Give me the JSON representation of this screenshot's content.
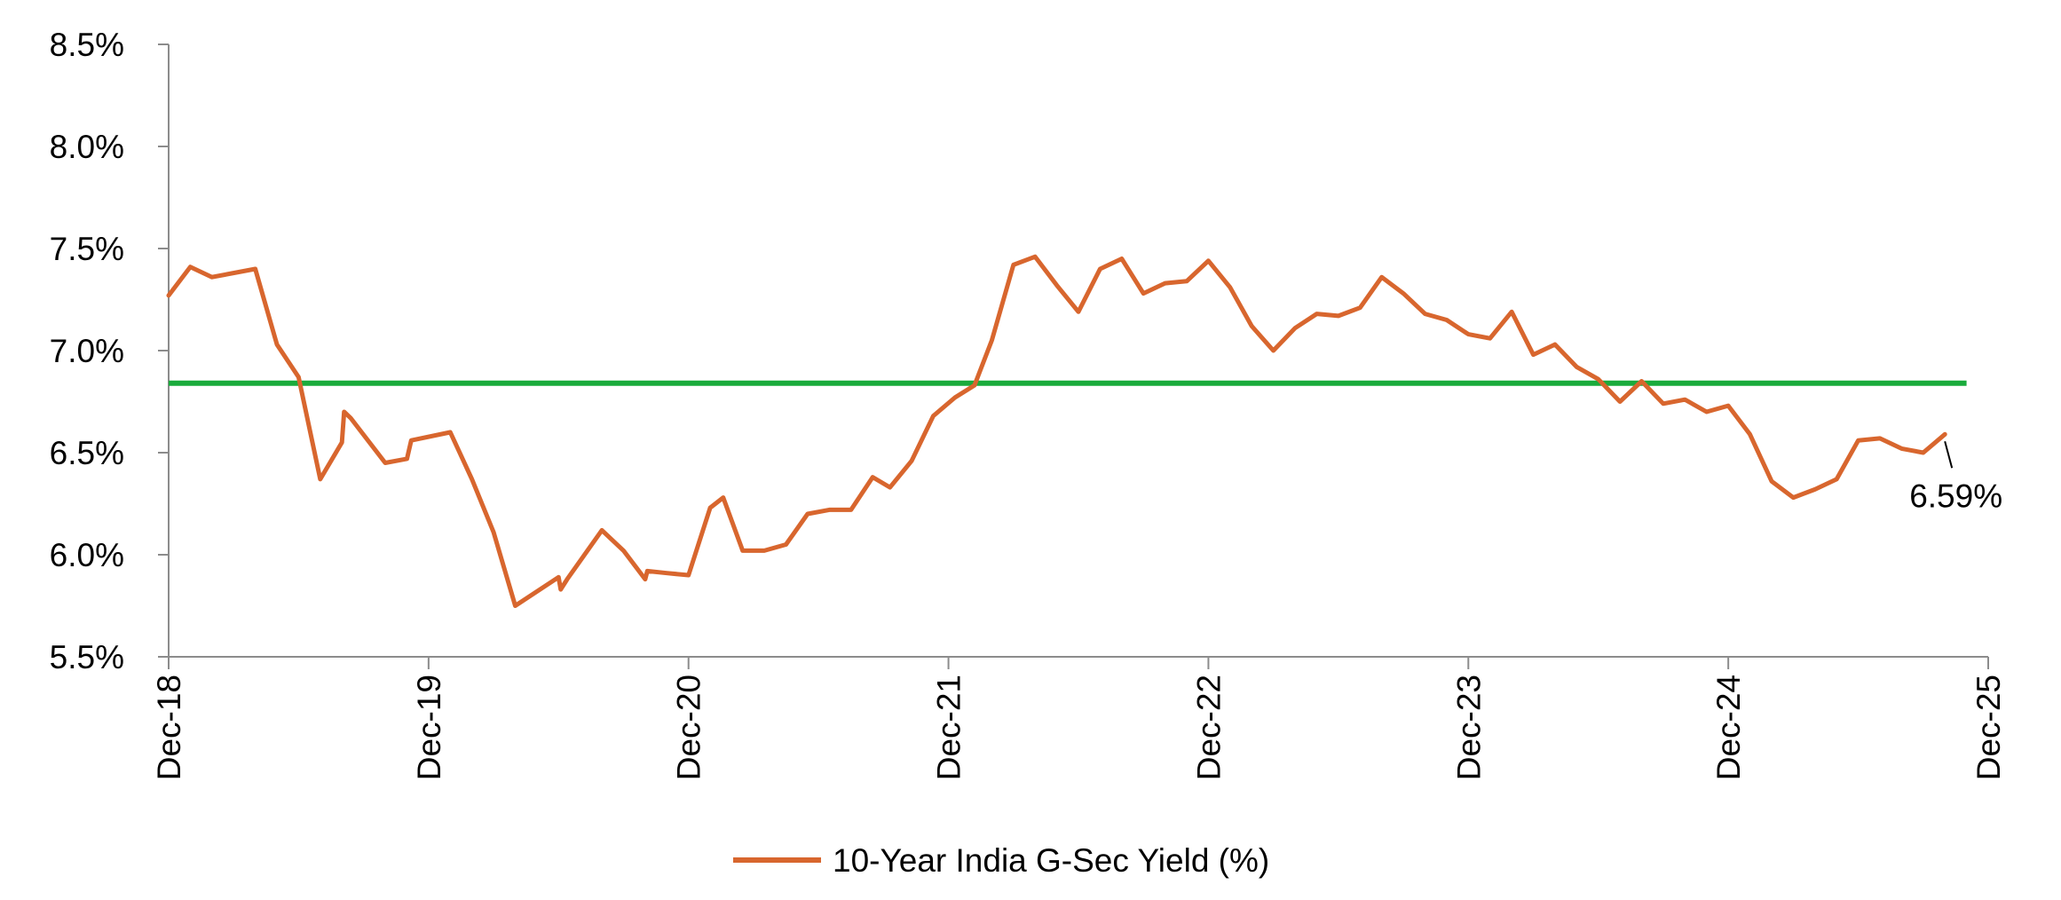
{
  "chart_data": {
    "type": "line",
    "title": "",
    "xlabel": "",
    "ylabel": "",
    "ylim": [
      5.5,
      8.5
    ],
    "xlim": [
      0,
      84
    ],
    "grid": false,
    "legend_position": "bottom-center",
    "y_ticks": [
      {
        "value": 5.5,
        "label": "5.5%"
      },
      {
        "value": 6.0,
        "label": "6.0%"
      },
      {
        "value": 6.5,
        "label": "6.5%"
      },
      {
        "value": 7.0,
        "label": "7.0%"
      },
      {
        "value": 7.5,
        "label": "7.5%"
      },
      {
        "value": 8.0,
        "label": "8.0%"
      },
      {
        "value": 8.5,
        "label": "8.5%"
      }
    ],
    "x_ticks": [
      {
        "value": 0,
        "label": "Dec-18"
      },
      {
        "value": 12,
        "label": "Dec-19"
      },
      {
        "value": 24,
        "label": "Dec-20"
      },
      {
        "value": 36,
        "label": "Dec-21"
      },
      {
        "value": 48,
        "label": "Dec-22"
      },
      {
        "value": 60,
        "label": "Dec-23"
      },
      {
        "value": 72,
        "label": "Dec-24"
      },
      {
        "value": 84,
        "label": "Dec-25"
      }
    ],
    "series": [
      {
        "name": "10-Year India G-Sec Yield (%)",
        "color": "#d8662e",
        "points": [
          [
            0.0,
            7.27
          ],
          [
            1.0,
            7.41
          ],
          [
            2.0,
            7.36
          ],
          [
            4.0,
            7.4
          ],
          [
            5.0,
            7.03
          ],
          [
            6.0,
            6.87
          ],
          [
            7.0,
            6.37
          ],
          [
            8.0,
            6.55
          ],
          [
            8.1,
            6.7
          ],
          [
            8.4,
            6.67
          ],
          [
            10.0,
            6.45
          ],
          [
            11.0,
            6.47
          ],
          [
            11.2,
            6.56
          ],
          [
            13.0,
            6.6
          ],
          [
            14.0,
            6.37
          ],
          [
            15.0,
            6.11
          ],
          [
            16.0,
            5.75
          ],
          [
            18.0,
            5.89
          ],
          [
            18.1,
            5.83
          ],
          [
            18.4,
            5.88
          ],
          [
            20.0,
            6.12
          ],
          [
            21.0,
            6.02
          ],
          [
            22.0,
            5.88
          ],
          [
            22.1,
            5.92
          ],
          [
            23.0,
            5.91
          ],
          [
            24.0,
            5.9
          ],
          [
            25.0,
            6.23
          ],
          [
            25.6,
            6.28
          ],
          [
            26.5,
            6.02
          ],
          [
            27.5,
            6.02
          ],
          [
            28.5,
            6.05
          ],
          [
            29.5,
            6.2
          ],
          [
            30.5,
            6.22
          ],
          [
            31.5,
            6.22
          ],
          [
            32.5,
            6.38
          ],
          [
            33.3,
            6.33
          ],
          [
            34.3,
            6.46
          ],
          [
            35.3,
            6.68
          ],
          [
            36.3,
            6.77
          ],
          [
            37.2,
            6.83
          ],
          [
            38.0,
            7.05
          ],
          [
            39.0,
            7.42
          ],
          [
            40.0,
            7.46
          ],
          [
            41.0,
            7.32
          ],
          [
            42.0,
            7.19
          ],
          [
            43.0,
            7.4
          ],
          [
            44.0,
            7.45
          ],
          [
            45.0,
            7.28
          ],
          [
            46.0,
            7.33
          ],
          [
            47.0,
            7.34
          ],
          [
            48.0,
            7.44
          ],
          [
            49.0,
            7.31
          ],
          [
            50.0,
            7.12
          ],
          [
            51.0,
            7.0
          ],
          [
            52.0,
            7.11
          ],
          [
            53.0,
            7.18
          ],
          [
            54.0,
            7.17
          ],
          [
            55.0,
            7.21
          ],
          [
            56.0,
            7.36
          ],
          [
            57.0,
            7.28
          ],
          [
            58.0,
            7.18
          ],
          [
            59.0,
            7.15
          ],
          [
            60.0,
            7.08
          ],
          [
            61.0,
            7.06
          ],
          [
            62.0,
            7.19
          ],
          [
            63.0,
            6.98
          ],
          [
            64.0,
            7.03
          ],
          [
            65.0,
            6.92
          ],
          [
            66.0,
            6.86
          ],
          [
            67.0,
            6.75
          ],
          [
            68.0,
            6.85
          ],
          [
            69.0,
            6.74
          ],
          [
            70.0,
            6.76
          ],
          [
            71.0,
            6.7
          ],
          [
            72.0,
            6.73
          ],
          [
            73.0,
            6.59
          ],
          [
            74.0,
            6.36
          ],
          [
            75.0,
            6.28
          ],
          [
            76.0,
            6.32
          ],
          [
            77.0,
            6.37
          ],
          [
            78.0,
            6.56
          ],
          [
            79.0,
            6.57
          ],
          [
            80.0,
            6.52
          ],
          [
            81.0,
            6.5
          ],
          [
            82.0,
            6.59
          ]
        ]
      }
    ],
    "reference_lines": [
      {
        "orientation": "horizontal",
        "value": 6.84,
        "x_start": 0,
        "x_end": 83,
        "color": "#1aab3c"
      }
    ],
    "annotations": [
      {
        "text": "6.59%",
        "x": 82,
        "y": 6.59
      }
    ]
  }
}
